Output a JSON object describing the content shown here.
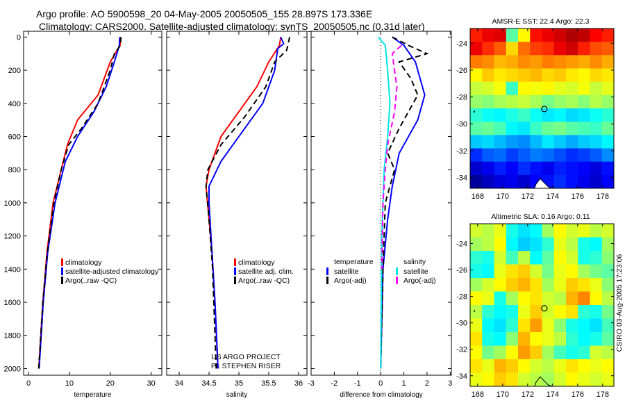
{
  "title_line1": "Argo profile: AO 5900598_20 04-May-2005 20050505_155 28.897S 173.336E",
  "title_line2": "Climatology: CARS2000. Satellite-adjusted climatology: synTS_20050505.nc (0.31d later)",
  "side_stamp": "CSIRO 03-Aug-2005 17:23:06",
  "credits": [
    "US ARGO PROJECT",
    "PI: STEPHEN RISER"
  ],
  "colors": {
    "red": "#ff0000",
    "blue": "#0000ff",
    "black": "#000000",
    "cyan": "#00e5e5",
    "magenta": "#ff00ff"
  },
  "chart_data": [
    {
      "type": "line",
      "id": "temperature",
      "xlabel": "temperature",
      "ylabel": "",
      "xlim": [
        -1.2,
        32.6
      ],
      "ylim": [
        2040,
        -35
      ],
      "xticks": [
        0,
        10,
        20,
        30
      ],
      "yticks": [
        0,
        200,
        400,
        600,
        800,
        1000,
        1200,
        1400,
        1600,
        1800,
        2000
      ],
      "legend": [
        "climatology",
        "satellite-adjusted climatology",
        "Argo(..raw -QC)"
      ],
      "legend_position": "lower-right",
      "series": [
        {
          "name": "climatology",
          "color": "red",
          "dash": false,
          "x": [
            22.5,
            22.4,
            20.0,
            17.0,
            12.0,
            9.5,
            8.0,
            6.0,
            4.5,
            3.5,
            2.5
          ],
          "y": [
            0,
            50,
            150,
            350,
            500,
            650,
            800,
            1000,
            1300,
            1600,
            2000
          ]
        },
        {
          "name": "satellite-adjusted climatology",
          "color": "blue",
          "dash": false,
          "x": [
            22.3,
            22.2,
            21.0,
            19.0,
            16.0,
            12.0,
            9.0,
            6.5,
            4.7,
            3.6,
            2.6
          ],
          "y": [
            0,
            50,
            150,
            300,
            450,
            600,
            750,
            1000,
            1300,
            1600,
            2000
          ]
        },
        {
          "name": "Argo(..raw -QC)",
          "color": "black",
          "dash": true,
          "x": [
            22.6,
            22.5,
            21.0,
            20.0,
            17.0,
            13.0,
            9.8,
            8.0,
            6.2,
            4.6,
            3.5,
            2.5
          ],
          "y": [
            0,
            50,
            100,
            200,
            400,
            550,
            650,
            800,
            1000,
            1300,
            1600,
            2000
          ]
        }
      ]
    },
    {
      "type": "line",
      "id": "salinity",
      "xlabel": "salinity",
      "xlim": [
        33.79,
        36.14
      ],
      "ylim": [
        2040,
        -35
      ],
      "xticks": [
        34,
        34.5,
        35,
        35.5,
        36
      ],
      "legend": [
        "climatology",
        "satellite adj. clim.",
        "Argo(..raw -QC)"
      ],
      "legend_position": "lower-right",
      "series": [
        {
          "name": "climatology",
          "color": "red",
          "dash": false,
          "x": [
            35.7,
            35.68,
            35.5,
            35.3,
            35.0,
            34.7,
            34.5,
            34.45,
            34.5,
            34.55,
            34.6,
            34.65
          ],
          "y": [
            0,
            50,
            150,
            300,
            450,
            600,
            800,
            900,
            1100,
            1300,
            1600,
            2000
          ]
        },
        {
          "name": "satellite adj. clim.",
          "color": "blue",
          "dash": false,
          "x": [
            35.7,
            35.75,
            35.65,
            35.6,
            35.4,
            35.1,
            34.7,
            34.5,
            34.5,
            34.55,
            34.6,
            34.65
          ],
          "y": [
            0,
            40,
            70,
            200,
            400,
            550,
            750,
            900,
            1000,
            1300,
            1600,
            2000
          ]
        },
        {
          "name": "Argo(..raw -QC)",
          "color": "black",
          "dash": true,
          "x": [
            35.85,
            35.8,
            35.6,
            35.45,
            35.1,
            34.7,
            34.48,
            34.45,
            34.5,
            34.56,
            34.62
          ],
          "y": [
            0,
            80,
            150,
            300,
            480,
            650,
            800,
            900,
            1100,
            1400,
            2000
          ]
        }
      ]
    },
    {
      "type": "line",
      "id": "difference",
      "xlabel": "difference from climatology",
      "xlim": [
        -3,
        3.05
      ],
      "ylim": [
        2040,
        -35
      ],
      "xticks": [
        -3,
        -2,
        -1,
        0,
        1,
        2,
        3
      ],
      "legend_temperature": {
        "heading": "temperature",
        "items": [
          "satellite",
          "Argo(-adj)"
        ]
      },
      "legend_salinity": {
        "heading": "salinity",
        "items": [
          "satellite",
          "Argo(-adj)"
        ]
      },
      "series": [
        {
          "name": "temperature satellite",
          "color": "blue",
          "dash": false,
          "x": [
            0.5,
            1.0,
            1.5,
            1.8,
            1.9,
            1.6,
            0.8,
            0.5,
            0.3,
            0.1,
            0.0
          ],
          "y": [
            0,
            50,
            150,
            300,
            350,
            500,
            700,
            900,
            1100,
            1400,
            2000
          ]
        },
        {
          "name": "temperature Argo(-adj)",
          "color": "black",
          "dash": true,
          "x": [
            0.5,
            1.2,
            2.0,
            0.8,
            1.3,
            1.6,
            1.2,
            0.8,
            0.3,
            0.6,
            0.2,
            0.1,
            0.0
          ],
          "y": [
            0,
            50,
            100,
            150,
            250,
            350,
            450,
            550,
            700,
            800,
            1000,
            1400,
            2000
          ]
        },
        {
          "name": "salinity satellite",
          "color": "cyan",
          "dash": false,
          "x": [
            -0.1,
            0.2,
            0.3,
            0.4,
            0.3,
            0.15,
            0.05,
            0.0
          ],
          "y": [
            0,
            50,
            200,
            400,
            600,
            800,
            1200,
            2000
          ]
        },
        {
          "name": "salinity Argo(-adj)",
          "color": "magenta",
          "dash": true,
          "x": [
            0.9,
            0.5,
            0.7,
            0.6,
            0.3,
            0.2,
            0.1,
            0.05
          ],
          "y": [
            50,
            100,
            300,
            450,
            650,
            800,
            1000,
            1400
          ]
        }
      ]
    },
    {
      "type": "heatmap",
      "id": "sst-map",
      "title": "AMSR-E SST: 22.4 Argo: 22.3",
      "xlim": [
        167.4,
        178.9
      ],
      "ylim": [
        -34.8,
        -22.9
      ],
      "xticks": [
        168,
        170,
        172,
        174,
        176,
        178
      ],
      "yticks": [
        -24,
        -26,
        -28,
        -30,
        -32,
        -34
      ],
      "crange": [
        18.5,
        25
      ],
      "marker": [
        173.336,
        -28.897
      ],
      "values": [
        [
          24.0,
          24.3,
          24.4,
          21.5,
          22.6,
          24.1,
          24.3,
          24.5,
          24.7,
          24.6,
          24.2,
          24.0
        ],
        [
          24.3,
          23.9,
          23.6,
          22.8,
          23.5,
          23.8,
          23.9,
          24.3,
          24.5,
          24.0,
          23.7,
          23.6
        ],
        [
          23.4,
          23.3,
          23.0,
          23.1,
          23.3,
          23.2,
          23.4,
          23.3,
          23.2,
          23.1,
          23.3,
          23.1
        ],
        [
          22.6,
          22.9,
          22.7,
          22.8,
          22.9,
          23.0,
          22.8,
          22.9,
          22.7,
          22.6,
          22.8,
          22.7
        ],
        [
          22.2,
          22.3,
          22.5,
          21.3,
          22.6,
          22.5,
          22.6,
          22.4,
          22.3,
          22.5,
          22.2,
          22.4
        ],
        [
          21.9,
          21.8,
          22.0,
          22.1,
          22.2,
          22.0,
          21.7,
          21.9,
          22.0,
          21.8,
          22.1,
          21.9
        ],
        [
          21.2,
          21.0,
          20.9,
          21.1,
          21.3,
          21.0,
          20.8,
          20.9,
          20.7,
          20.8,
          21.0,
          21.2
        ],
        [
          21.5,
          21.6,
          21.4,
          20.9,
          20.8,
          21.3,
          21.6,
          21.7,
          21.5,
          21.4,
          21.3,
          21.6
        ],
        [
          20.6,
          20.7,
          20.5,
          20.3,
          20.2,
          20.5,
          20.8,
          20.6,
          20.4,
          20.6,
          20.7,
          20.9
        ],
        [
          19.6,
          19.9,
          20.0,
          19.7,
          19.9,
          20.1,
          20.0,
          19.8,
          19.6,
          19.7,
          19.9,
          20.2
        ],
        [
          19.0,
          19.2,
          19.5,
          19.3,
          19.6,
          19.4,
          19.2,
          19.5,
          19.4,
          19.3,
          19.1,
          19.4
        ],
        [
          18.7,
          18.9,
          19.1,
          19.2,
          19.0,
          19.3,
          19.4,
          19.6,
          19.4,
          19.2,
          19.0,
          19.3
        ]
      ]
    },
    {
      "type": "heatmap",
      "id": "sla-map",
      "title": "Altimetric SLA: 0.16 Argo: 0.11",
      "xlim": [
        167.4,
        178.9
      ],
      "ylim": [
        -34.8,
        -22.5
      ],
      "xticks": [
        168,
        170,
        172,
        174,
        176,
        178
      ],
      "yticks": [
        -24,
        -26,
        -28,
        -30,
        -32,
        -34
      ],
      "crange": [
        -0.05,
        0.38
      ],
      "marker": [
        173.336,
        -28.897
      ],
      "values": [
        [
          0.2,
          0.19,
          0.21,
          0.12,
          0.1,
          0.11,
          0.18,
          0.22,
          0.2,
          0.21,
          0.19,
          0.2
        ],
        [
          0.18,
          0.19,
          0.22,
          0.11,
          0.09,
          0.1,
          0.13,
          0.21,
          0.19,
          0.12,
          0.11,
          0.18
        ],
        [
          0.13,
          0.12,
          0.2,
          0.14,
          0.19,
          0.11,
          0.15,
          0.22,
          0.2,
          0.12,
          0.13,
          0.17
        ],
        [
          0.12,
          0.11,
          0.21,
          0.23,
          0.24,
          0.2,
          0.16,
          0.21,
          0.22,
          0.18,
          0.16,
          0.15
        ],
        [
          0.18,
          0.2,
          0.22,
          0.24,
          0.25,
          0.23,
          0.18,
          0.21,
          0.24,
          0.23,
          0.21,
          0.17
        ],
        [
          0.22,
          0.21,
          0.12,
          0.18,
          0.22,
          0.23,
          0.2,
          0.19,
          0.25,
          0.27,
          0.22,
          0.19
        ],
        [
          0.19,
          0.13,
          0.11,
          0.12,
          0.21,
          0.24,
          0.2,
          0.22,
          0.23,
          0.13,
          0.12,
          0.16
        ],
        [
          0.21,
          0.11,
          0.1,
          0.13,
          0.23,
          0.26,
          0.21,
          0.17,
          0.12,
          0.11,
          0.1,
          0.14
        ],
        [
          0.23,
          0.12,
          0.11,
          0.17,
          0.25,
          0.22,
          0.21,
          0.19,
          0.13,
          0.11,
          0.12,
          0.15
        ],
        [
          0.22,
          0.16,
          0.18,
          0.22,
          0.26,
          0.24,
          0.18,
          0.14,
          0.12,
          0.13,
          0.2,
          0.19
        ],
        [
          0.23,
          0.21,
          0.25,
          0.24,
          0.22,
          0.2,
          0.19,
          0.21,
          0.23,
          0.22,
          0.21,
          0.22
        ],
        [
          0.21,
          0.22,
          0.24,
          0.23,
          0.2,
          0.19,
          0.18,
          0.2,
          0.22,
          0.21,
          0.2,
          0.21
        ]
      ]
    }
  ]
}
